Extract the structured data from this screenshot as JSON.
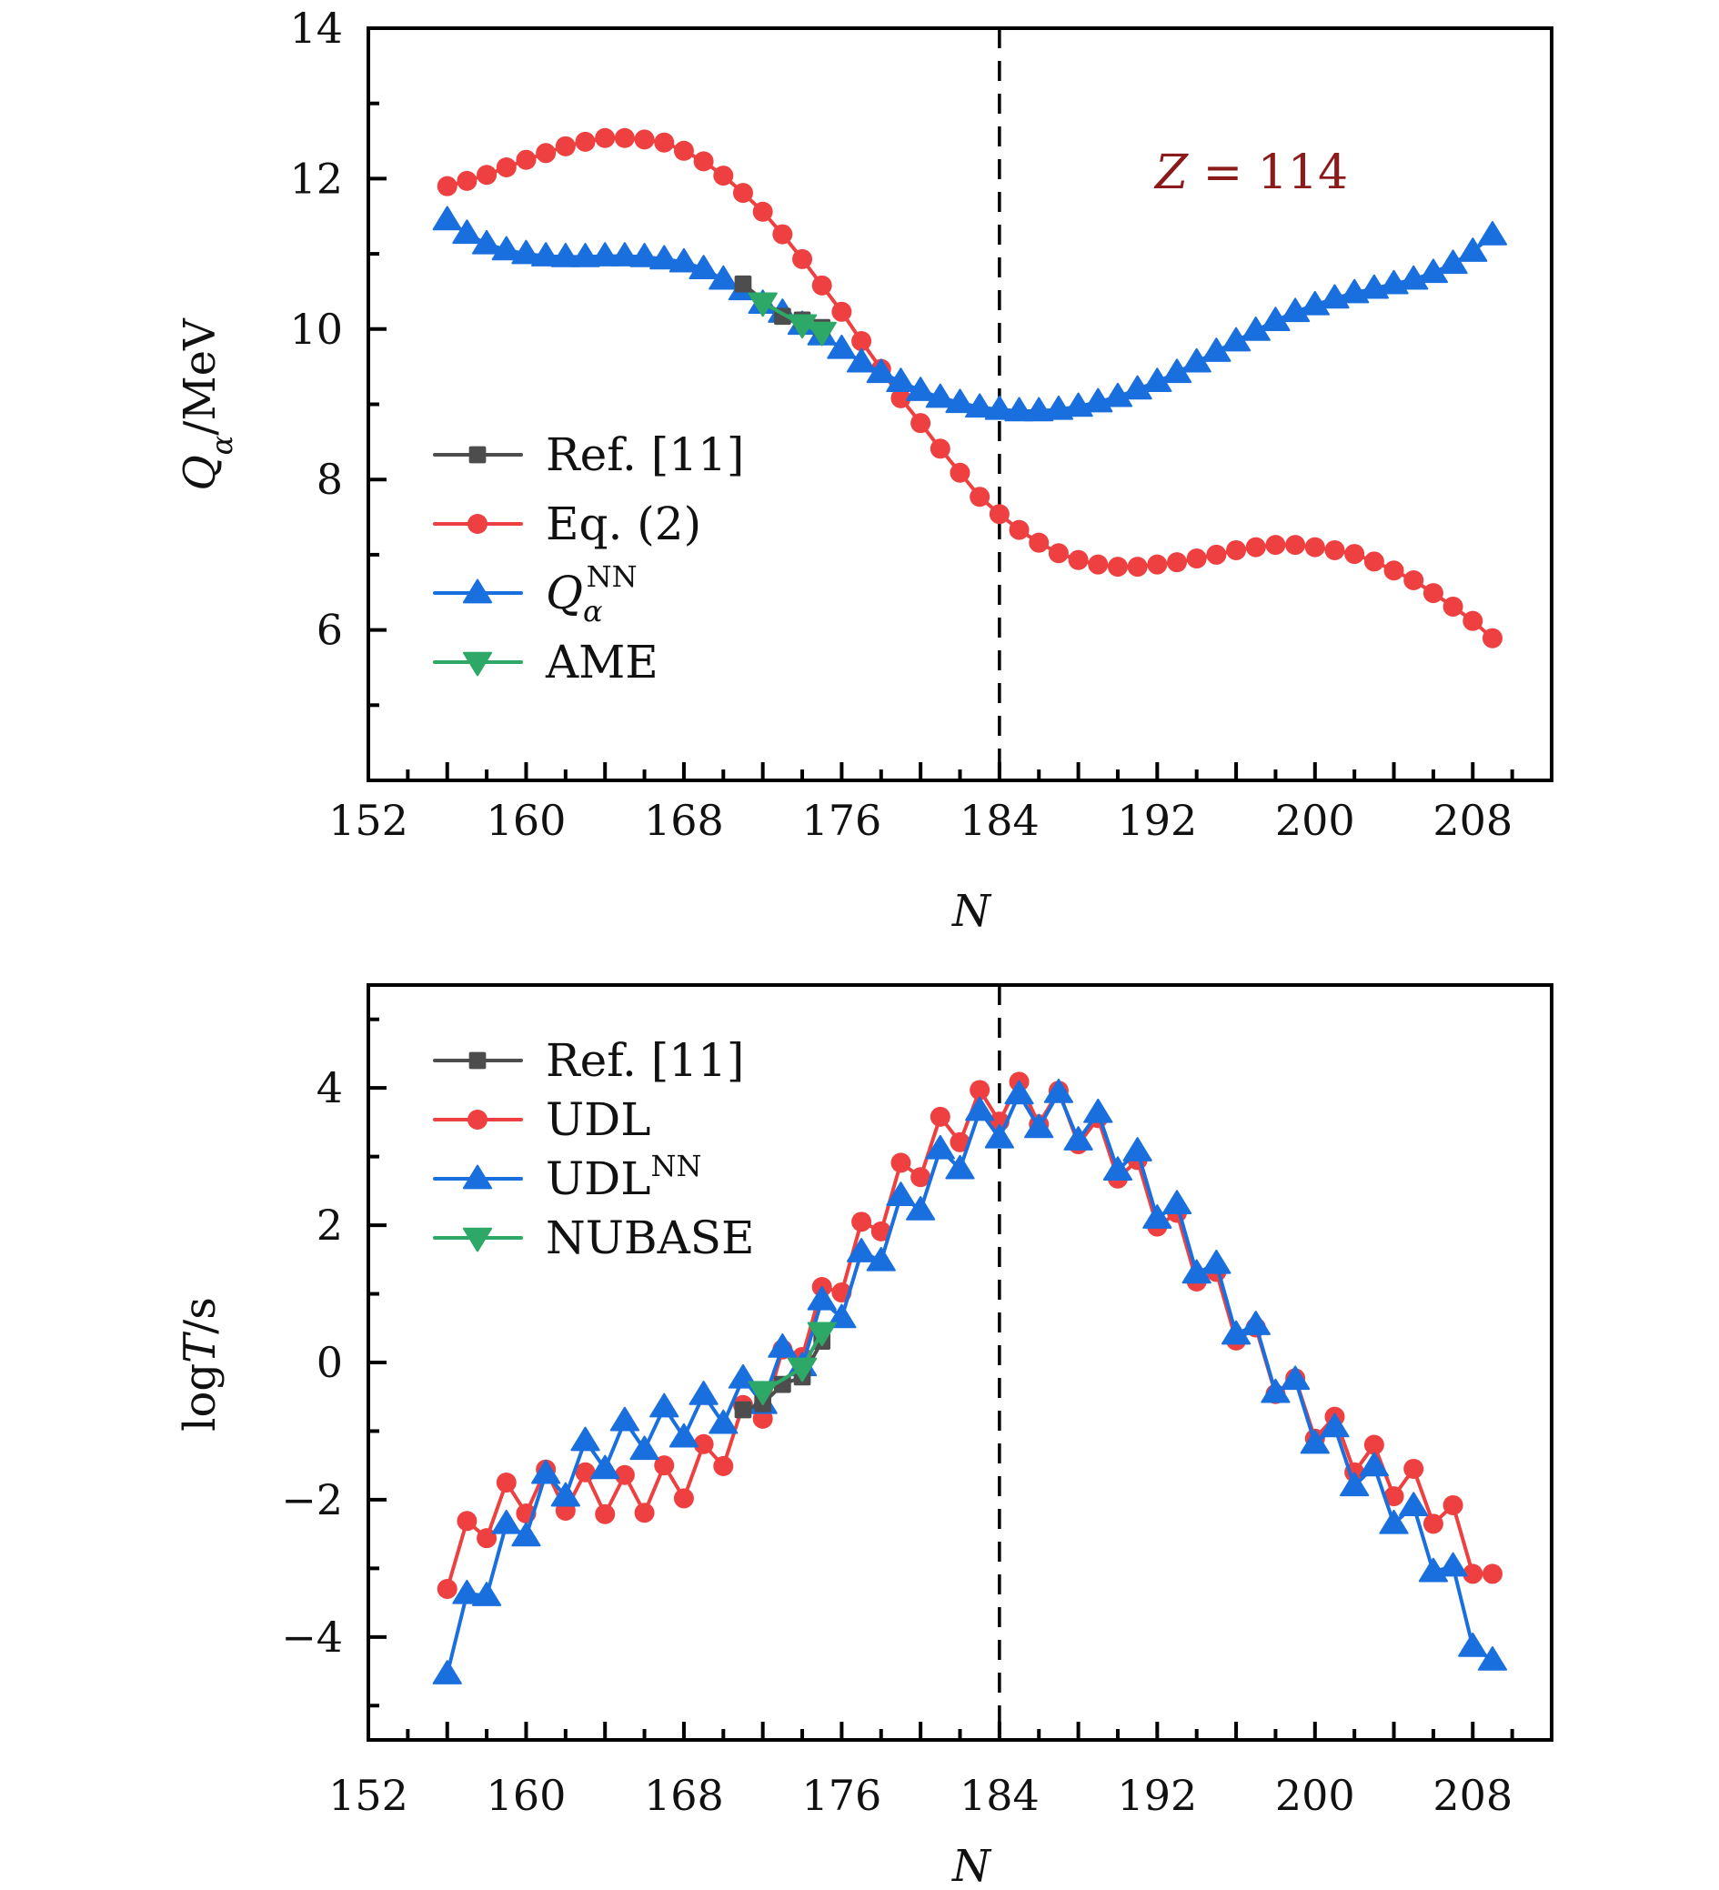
{
  "chart_data": [
    {
      "id": "top",
      "type": "line",
      "title": "",
      "xlabel": "N",
      "ylabel": "Q_α/MeV",
      "ylabel_parts": {
        "main": "Q",
        "sub": "α",
        "rest": "/MeV"
      },
      "xlim": [
        152,
        212
      ],
      "ylim": [
        4,
        14
      ],
      "xticks": [
        152,
        160,
        168,
        176,
        184,
        192,
        200,
        208
      ],
      "xtick_labels": [
        "152",
        "160",
        "168",
        "176",
        "184",
        "192",
        "200",
        "208"
      ],
      "yticks": [
        6,
        8,
        10,
        12,
        14
      ],
      "ytick_labels": [
        "6",
        "8",
        "10",
        "12",
        "14"
      ],
      "vline": 184,
      "grid": false,
      "legend_position": "lower-left",
      "annotation": {
        "text_italic": "Z",
        "text_rest": " = 114",
        "color": "#8B1A1A"
      },
      "series": [
        {
          "name": "Ref. [11]",
          "marker": "square",
          "color": "#4D4D4D",
          "x": [
            171,
            173,
            174,
            175
          ],
          "y": [
            10.6,
            10.17,
            10.12,
            10.02
          ]
        },
        {
          "name": "Eq. (2)",
          "marker": "circle",
          "color": "#EE4040",
          "x": [
            156,
            157,
            158,
            159,
            160,
            161,
            162,
            163,
            164,
            165,
            166,
            167,
            168,
            169,
            170,
            171,
            172,
            173,
            174,
            175,
            176,
            177,
            178,
            179,
            180,
            181,
            182,
            183,
            184,
            185,
            186,
            187,
            188,
            189,
            190,
            191,
            192,
            193,
            194,
            195,
            196,
            197,
            198,
            199,
            200,
            201,
            202,
            203,
            204,
            205,
            206,
            207,
            208,
            209
          ],
          "y": [
            11.9,
            11.97,
            12.05,
            12.15,
            12.25,
            12.34,
            12.43,
            12.49,
            12.54,
            12.54,
            12.52,
            12.48,
            12.37,
            12.23,
            12.04,
            11.81,
            11.56,
            11.26,
            10.93,
            10.58,
            10.23,
            9.84,
            9.47,
            9.08,
            8.75,
            8.41,
            8.09,
            7.77,
            7.54,
            7.33,
            7.16,
            7.02,
            6.93,
            6.87,
            6.84,
            6.84,
            6.87,
            6.9,
            6.95,
            7.0,
            7.06,
            7.1,
            7.13,
            7.13,
            7.1,
            7.06,
            7.01,
            6.91,
            6.79,
            6.66,
            6.49,
            6.31,
            6.12,
            5.89
          ]
        },
        {
          "name": "Q_α^NN",
          "name_parts": {
            "main": "Q",
            "sub": "α",
            "sup": "NN"
          },
          "marker": "triangle-up",
          "color": "#1A6FDF",
          "x": [
            156,
            157,
            158,
            159,
            160,
            161,
            162,
            163,
            164,
            165,
            166,
            167,
            168,
            169,
            170,
            171,
            172,
            173,
            174,
            175,
            176,
            177,
            178,
            179,
            180,
            181,
            182,
            183,
            184,
            185,
            186,
            187,
            188,
            189,
            190,
            191,
            192,
            193,
            194,
            195,
            196,
            197,
            198,
            199,
            200,
            201,
            202,
            203,
            204,
            205,
            206,
            207,
            208,
            209
          ],
          "y": [
            11.45,
            11.27,
            11.13,
            11.05,
            11.0,
            10.97,
            10.96,
            10.96,
            10.97,
            10.97,
            10.96,
            10.93,
            10.89,
            10.8,
            10.66,
            10.52,
            10.34,
            10.22,
            10.06,
            9.92,
            9.74,
            9.56,
            9.42,
            9.3,
            9.18,
            9.09,
            9.02,
            8.96,
            8.93,
            8.91,
            8.91,
            8.93,
            8.97,
            9.03,
            9.1,
            9.2,
            9.3,
            9.42,
            9.56,
            9.7,
            9.84,
            9.98,
            10.11,
            10.23,
            10.32,
            10.41,
            10.48,
            10.54,
            10.6,
            10.66,
            10.75,
            10.87,
            11.03,
            11.25
          ]
        },
        {
          "name": "AME",
          "marker": "triangle-down",
          "color": "#2EA866",
          "x": [
            172,
            174,
            175
          ],
          "y": [
            10.35,
            10.06,
            9.96
          ]
        }
      ]
    },
    {
      "id": "bottom",
      "type": "line",
      "title": "",
      "xlabel": "N",
      "ylabel": "logT/s",
      "ylabel_parts": {
        "pre": "log",
        "italic": "T",
        "rest": "/s"
      },
      "xlim": [
        152,
        212
      ],
      "ylim": [
        -5.5,
        5.5
      ],
      "xticks": [
        152,
        160,
        168,
        176,
        184,
        192,
        200,
        208
      ],
      "xtick_labels": [
        "152",
        "160",
        "168",
        "176",
        "184",
        "192",
        "200",
        "208"
      ],
      "yticks": [
        -4,
        -2,
        0,
        2,
        4
      ],
      "ytick_labels": [
        "−4",
        "−2",
        "0",
        "2",
        "4"
      ],
      "vline": 184,
      "grid": false,
      "legend_position": "top-left",
      "series": [
        {
          "name": "Ref. [11]",
          "marker": "square",
          "color": "#4D4D4D",
          "x": [
            171,
            172,
            173,
            174,
            175
          ],
          "y": [
            -0.69,
            -0.6,
            -0.32,
            -0.21,
            0.31
          ]
        },
        {
          "name": "UDL",
          "marker": "circle",
          "color": "#EE4040",
          "x": [
            156,
            157,
            158,
            159,
            160,
            161,
            162,
            163,
            164,
            165,
            166,
            167,
            168,
            169,
            170,
            171,
            172,
            173,
            174,
            175,
            176,
            177,
            178,
            179,
            180,
            181,
            182,
            183,
            184,
            185,
            186,
            187,
            188,
            189,
            190,
            191,
            192,
            193,
            194,
            195,
            196,
            197,
            198,
            199,
            200,
            201,
            202,
            203,
            204,
            205,
            206,
            207,
            208,
            209
          ],
          "y": [
            -3.3,
            -2.31,
            -2.56,
            -1.75,
            -2.2,
            -1.56,
            -2.16,
            -1.6,
            -2.21,
            -1.64,
            -2.19,
            -1.5,
            -1.98,
            -1.19,
            -1.51,
            -0.62,
            -0.82,
            0.19,
            0.08,
            1.1,
            1.02,
            2.05,
            1.91,
            2.91,
            2.7,
            3.58,
            3.21,
            3.97,
            3.51,
            4.09,
            3.47,
            3.96,
            3.18,
            3.56,
            2.68,
            2.95,
            1.98,
            2.18,
            1.18,
            1.32,
            0.32,
            0.51,
            -0.46,
            -0.23,
            -1.11,
            -0.79,
            -1.6,
            -1.2,
            -1.95,
            -1.55,
            -2.35,
            -2.08,
            -3.08,
            -3.08
          ]
        },
        {
          "name": "UDL^NN",
          "name_parts": {
            "main": "UDL",
            "sup": "NN"
          },
          "marker": "triangle-up",
          "color": "#1A6FDF",
          "x": [
            156,
            157,
            158,
            159,
            160,
            161,
            162,
            163,
            164,
            165,
            166,
            167,
            168,
            169,
            170,
            171,
            172,
            173,
            174,
            175,
            176,
            177,
            178,
            179,
            180,
            181,
            182,
            183,
            184,
            185,
            186,
            187,
            188,
            189,
            190,
            191,
            192,
            193,
            194,
            195,
            196,
            197,
            198,
            199,
            200,
            201,
            202,
            203,
            204,
            205,
            206,
            207,
            208,
            209
          ],
          "y": [
            -4.54,
            -3.37,
            -3.4,
            -2.35,
            -2.53,
            -1.62,
            -1.95,
            -1.14,
            -1.55,
            -0.85,
            -1.27,
            -0.65,
            -1.09,
            -0.47,
            -0.89,
            -0.23,
            -0.6,
            0.22,
            -0.05,
            0.91,
            0.65,
            1.61,
            1.48,
            2.43,
            2.22,
            3.11,
            2.82,
            3.67,
            3.27,
            3.91,
            3.42,
            3.93,
            3.24,
            3.64,
            2.8,
            3.08,
            2.1,
            2.31,
            1.3,
            1.44,
            0.41,
            0.55,
            -0.44,
            -0.25,
            -1.18,
            -0.94,
            -1.8,
            -1.51,
            -2.35,
            -2.09,
            -3.05,
            -2.97,
            -4.14,
            -4.34
          ]
        },
        {
          "name": "NUBASE",
          "marker": "triangle-down",
          "color": "#2EA866",
          "x": [
            172,
            174,
            175
          ],
          "y": [
            -0.42,
            -0.08,
            0.44
          ]
        }
      ]
    }
  ]
}
